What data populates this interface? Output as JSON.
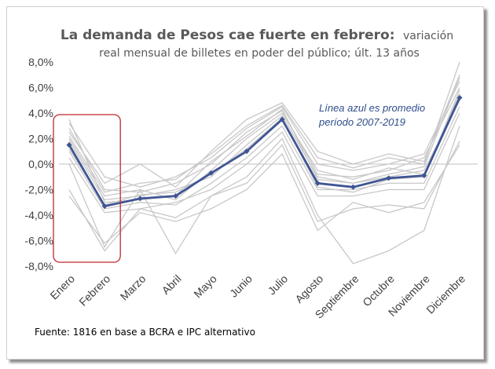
{
  "chart_data": {
    "type": "line",
    "title": "La demanda de Pesos cae fuerte en febrero:",
    "subtitle_part1": "variación",
    "subtitle_part2": "real mensual de billetes en poder del público; últ. 13 años",
    "xlabel": "",
    "ylabel": "",
    "categories": [
      "Enero",
      "Febrero",
      "Marzo",
      "Abril",
      "Mayo",
      "Junio",
      "Julio",
      "Agosto",
      "Septiembre",
      "Octubre",
      "Noviembre",
      "Diciembre"
    ],
    "y_ticks": [
      "8,0%",
      "6,0%",
      "4,0%",
      "2,0%",
      "0,0%",
      "-2,0%",
      "-4,0%",
      "-6,0%",
      "-8,0%"
    ],
    "ylim": [
      -8,
      8
    ],
    "grid": false,
    "annotation": [
      "Línea azul es promedio",
      "período 2007-2019"
    ],
    "highlight_box": {
      "from_category": "Enero",
      "to_category": "Febrero",
      "y_range": [
        -8,
        4
      ]
    },
    "source": "Fuente: 1816 en base a BCRA e IPC alternativo",
    "colors": {
      "average": "#3f5594",
      "years": "#c8c8c8",
      "highlight": "#c0282c",
      "zero_line": "#bfbfbf"
    },
    "series": [
      {
        "values": [
          1.5,
          -3.3,
          -2.7,
          -2.5,
          -0.7,
          1.0,
          3.5,
          -1.5,
          -1.8,
          -1.1,
          -0.9,
          5.2
        ]
      },
      {
        "values": [
          3.2,
          -1.0,
          -1.8,
          -1.0,
          0.5,
          2.8,
          4.5,
          0.0,
          -0.5,
          0.0,
          0.8,
          6.5
        ]
      },
      {
        "values": [
          2.8,
          -2.0,
          -2.2,
          -1.5,
          0.0,
          2.5,
          4.2,
          -0.8,
          -1.0,
          -0.5,
          0.5,
          6.0
        ]
      },
      {
        "values": [
          2.5,
          -1.5,
          0.0,
          -1.8,
          1.0,
          3.5,
          4.8,
          1.0,
          0.0,
          0.8,
          0.2,
          7.0
        ]
      },
      {
        "values": [
          2.0,
          -2.5,
          -2.0,
          -2.8,
          -0.5,
          2.0,
          4.0,
          -0.5,
          -1.2,
          -0.3,
          -0.8,
          5.5
        ]
      },
      {
        "values": [
          1.8,
          -2.8,
          -2.5,
          -2.0,
          -1.0,
          1.5,
          3.8,
          -1.0,
          -1.5,
          -1.0,
          -0.5,
          5.0
        ]
      },
      {
        "values": [
          1.0,
          -3.5,
          -3.0,
          -3.2,
          -1.5,
          0.5,
          3.0,
          -2.0,
          -2.0,
          -1.5,
          -1.5,
          4.5
        ]
      },
      {
        "values": [
          0.5,
          -3.8,
          -3.5,
          -3.0,
          -2.0,
          0.0,
          2.5,
          -2.5,
          -2.5,
          -2.0,
          -2.0,
          4.0
        ]
      },
      {
        "values": [
          0.0,
          -6.5,
          -2.0,
          -7.0,
          -2.5,
          -1.0,
          2.0,
          -4.0,
          -7.8,
          -6.8,
          -5.2,
          3.0
        ]
      },
      {
        "values": [
          -2.0,
          -6.8,
          -3.5,
          -4.2,
          -2.5,
          -1.5,
          1.5,
          -4.5,
          -3.5,
          -3.2,
          -3.5,
          1.8
        ]
      },
      {
        "values": [
          -2.5,
          -6.2,
          -3.8,
          -4.5,
          -3.5,
          -2.0,
          0.8,
          -5.2,
          -3.0,
          -3.8,
          -3.0,
          1.5
        ]
      },
      {
        "values": [
          2.2,
          -2.2,
          -1.5,
          -1.2,
          0.8,
          3.0,
          4.6,
          0.5,
          -0.3,
          0.5,
          0.0,
          8.0
        ]
      },
      {
        "values": [
          3.5,
          -3.0,
          -2.8,
          -2.5,
          0.2,
          2.2,
          4.3,
          -1.2,
          -1.5,
          -0.8,
          -0.2,
          6.8
        ]
      },
      {
        "values": [
          1.2,
          -3.2,
          -2.4,
          -2.2,
          -0.8,
          1.2,
          3.6,
          -1.8,
          -2.2,
          -1.2,
          -1.0,
          5.8
        ]
      }
    ]
  }
}
